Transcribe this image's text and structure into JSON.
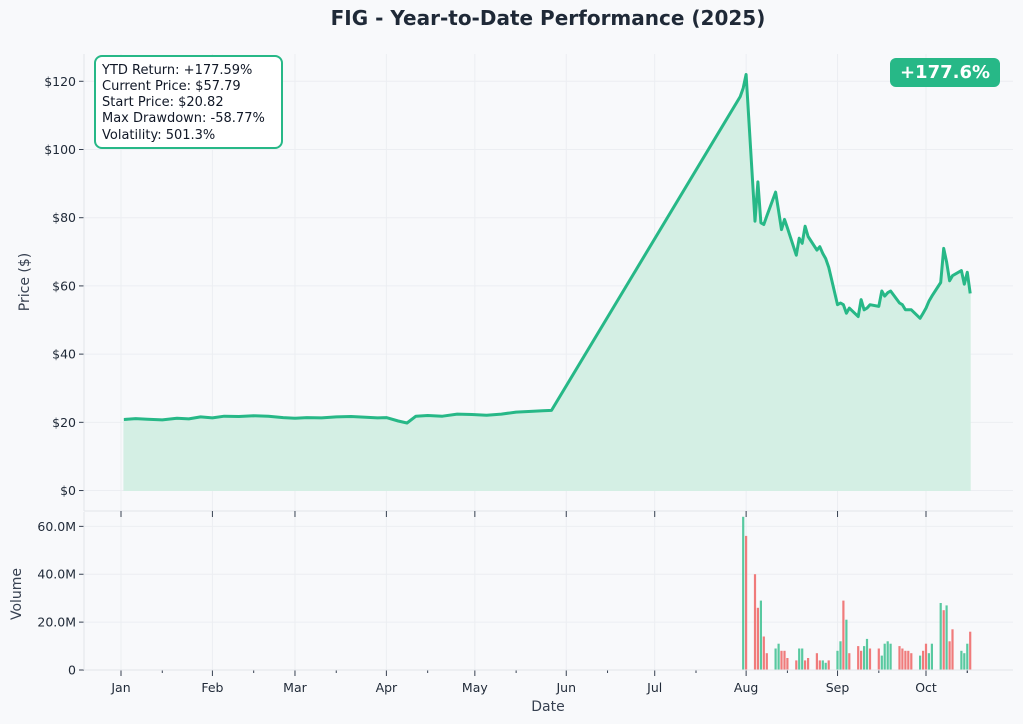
{
  "chart_data": [
    {
      "type": "area",
      "title": "FIG - Year-to-Date Performance (2025)",
      "ylabel": "Price ($)",
      "ylim": [
        -6,
        128
      ],
      "yticks": [
        0,
        20,
        40,
        60,
        80,
        100,
        120
      ],
      "ytick_labels": [
        "$0",
        "$20",
        "$40",
        "$60",
        "$80",
        "$100",
        "$120"
      ],
      "grid": true,
      "line_color": "#27b887",
      "fill_color": "#d4efe4",
      "series": [
        {
          "x": [
            "2025-01-02",
            "2025-01-06",
            "2025-01-10",
            "2025-01-15",
            "2025-01-20",
            "2025-01-24",
            "2025-01-28",
            "2025-02-01",
            "2025-02-05",
            "2025-02-10",
            "2025-02-15",
            "2025-02-20",
            "2025-02-25",
            "2025-03-01",
            "2025-03-05",
            "2025-03-10",
            "2025-03-15",
            "2025-03-20",
            "2025-03-25",
            "2025-03-29",
            "2025-04-01",
            "2025-04-05",
            "2025-04-08",
            "2025-04-11",
            "2025-04-15",
            "2025-04-20",
            "2025-04-25",
            "2025-04-30",
            "2025-05-05",
            "2025-05-10",
            "2025-05-15",
            "2025-05-20",
            "2025-05-24",
            "2025-05-27",
            "2025-07-30",
            "2025-07-31",
            "2025-08-01",
            "2025-08-04",
            "2025-08-05",
            "2025-08-06",
            "2025-08-07",
            "2025-08-08",
            "2025-08-11",
            "2025-08-12",
            "2025-08-13",
            "2025-08-14",
            "2025-08-15",
            "2025-08-18",
            "2025-08-19",
            "2025-08-20",
            "2025-08-21",
            "2025-08-22",
            "2025-08-25",
            "2025-08-26",
            "2025-08-27",
            "2025-08-28",
            "2025-08-29",
            "2025-09-01",
            "2025-09-02",
            "2025-09-03",
            "2025-09-04",
            "2025-09-05",
            "2025-09-08",
            "2025-09-09",
            "2025-09-10",
            "2025-09-11",
            "2025-09-12",
            "2025-09-15",
            "2025-09-16",
            "2025-09-17",
            "2025-09-18",
            "2025-09-19",
            "2025-09-22",
            "2025-09-23",
            "2025-09-24",
            "2025-09-25",
            "2025-09-26",
            "2025-09-29",
            "2025-09-30",
            "2025-10-01",
            "2025-10-02",
            "2025-10-03",
            "2025-10-06",
            "2025-10-07",
            "2025-10-08",
            "2025-10-09",
            "2025-10-10",
            "2025-10-13",
            "2025-10-14",
            "2025-10-15",
            "2025-10-16"
          ],
          "y": [
            20.82,
            21.1,
            20.9,
            20.7,
            21.2,
            21.0,
            21.6,
            21.3,
            21.8,
            21.7,
            21.9,
            21.8,
            21.4,
            21.2,
            21.4,
            21.3,
            21.6,
            21.7,
            21.5,
            21.3,
            21.4,
            20.4,
            19.8,
            21.8,
            22.0,
            21.8,
            22.4,
            22.3,
            22.1,
            22.4,
            23.0,
            23.2,
            23.4,
            23.5,
            115.5,
            118.0,
            122.0,
            79.0,
            90.5,
            78.5,
            78.0,
            80.5,
            87.5,
            82.0,
            76.5,
            79.5,
            77.0,
            69.0,
            74.0,
            72.5,
            77.5,
            74.5,
            70.5,
            71.5,
            69.5,
            68.0,
            65.5,
            54.5,
            55.0,
            54.5,
            52.0,
            53.5,
            51.0,
            56.0,
            53.0,
            53.5,
            54.5,
            54.0,
            58.5,
            57.0,
            58.0,
            58.5,
            55.0,
            54.5,
            53.0,
            53.0,
            53.0,
            50.5,
            52.0,
            53.5,
            55.5,
            57.0,
            61.0,
            71.0,
            67.0,
            61.5,
            63.0,
            64.5,
            60.5,
            64.0,
            57.79
          ]
        }
      ]
    },
    {
      "type": "bar",
      "xlabel": "Date",
      "ylabel": "Volume",
      "ylim": [
        0,
        66000000
      ],
      "yticks": [
        0,
        20000000,
        40000000,
        60000000
      ],
      "ytick_labels": [
        "0",
        "20.0M",
        "40.0M",
        "60.0M"
      ],
      "xticks": [
        "2025-01-01",
        "2025-02-01",
        "2025-03-01",
        "2025-04-01",
        "2025-05-01",
        "2025-06-01",
        "2025-07-01",
        "2025-08-01",
        "2025-09-01",
        "2025-10-01"
      ],
      "xtick_labels": [
        "Jan",
        "Feb",
        "Mar",
        "Apr",
        "May",
        "Jun",
        "Jul",
        "Aug",
        "Sep",
        "Oct"
      ],
      "up_color": "#58c9a0",
      "down_color": "#f07b7b",
      "series": [
        {
          "x": [
            "2025-07-31",
            "2025-08-01",
            "2025-08-04",
            "2025-08-05",
            "2025-08-06",
            "2025-08-07",
            "2025-08-08",
            "2025-08-11",
            "2025-08-12",
            "2025-08-13",
            "2025-08-14",
            "2025-08-15",
            "2025-08-18",
            "2025-08-19",
            "2025-08-20",
            "2025-08-21",
            "2025-08-22",
            "2025-08-25",
            "2025-08-26",
            "2025-08-27",
            "2025-08-28",
            "2025-08-29",
            "2025-09-01",
            "2025-09-02",
            "2025-09-03",
            "2025-09-04",
            "2025-09-05",
            "2025-09-08",
            "2025-09-09",
            "2025-09-10",
            "2025-09-11",
            "2025-09-12",
            "2025-09-15",
            "2025-09-16",
            "2025-09-17",
            "2025-09-18",
            "2025-09-19",
            "2025-09-22",
            "2025-09-23",
            "2025-09-24",
            "2025-09-25",
            "2025-09-26",
            "2025-09-29",
            "2025-09-30",
            "2025-10-01",
            "2025-10-02",
            "2025-10-03",
            "2025-10-06",
            "2025-10-07",
            "2025-10-08",
            "2025-10-09",
            "2025-10-10",
            "2025-10-13",
            "2025-10-14",
            "2025-10-15",
            "2025-10-16"
          ],
          "values": [
            64000000,
            56000000,
            40000000,
            26000000,
            29000000,
            14000000,
            7000000,
            9000000,
            11000000,
            8000000,
            8000000,
            5000000,
            4000000,
            9000000,
            9000000,
            4000000,
            5000000,
            7000000,
            4000000,
            4000000,
            3000000,
            4000000,
            8000000,
            12000000,
            29000000,
            21000000,
            7000000,
            10000000,
            8000000,
            10000000,
            13000000,
            9000000,
            9000000,
            6000000,
            11000000,
            12000000,
            11000000,
            10000000,
            9000000,
            8000000,
            8000000,
            7000000,
            6000000,
            8000000,
            11000000,
            7000000,
            11000000,
            28000000,
            25000000,
            27000000,
            12000000,
            17000000,
            8000000,
            7000000,
            11000000,
            16000000
          ],
          "direction": [
            "up",
            "down",
            "down",
            "down",
            "up",
            "down",
            "down",
            "up",
            "up",
            "down",
            "down",
            "down",
            "down",
            "up",
            "up",
            "down",
            "down",
            "down",
            "down",
            "up",
            "up",
            "down",
            "up",
            "up",
            "down",
            "up",
            "down",
            "down",
            "down",
            "up",
            "up",
            "down",
            "down",
            "up",
            "up",
            "up",
            "up",
            "down",
            "down",
            "down",
            "down",
            "down",
            "up",
            "down",
            "down",
            "up",
            "up",
            "up",
            "down",
            "up",
            "down",
            "down",
            "up",
            "up",
            "up",
            "down"
          ]
        }
      ]
    }
  ],
  "stats": {
    "ytd_return": "YTD Return: +177.59%",
    "current_price": "Current Price: $57.79",
    "start_price": "Start Price: $20.82",
    "max_drawdown": "Max Drawdown: -58.77%",
    "volatility": "Volatility: 501.3%"
  },
  "badge": {
    "text": "+177.6%",
    "color": "#27b887"
  }
}
